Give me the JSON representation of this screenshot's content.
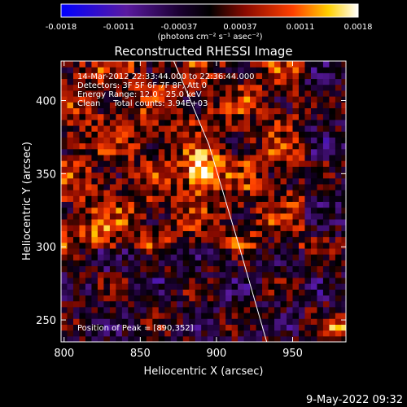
{
  "chart_data": {
    "type": "heatmap",
    "title": "Reconstructed RHESSI Image",
    "xlabel": "Heliocentric X (arcsec)",
    "ylabel": "Heliocentric Y (arcsec)",
    "xlim": [
      798,
      985
    ],
    "ylim": [
      235,
      427
    ],
    "xticks": [
      800,
      850,
      900,
      950
    ],
    "yticks": [
      250,
      300,
      350,
      400
    ],
    "colorbar": {
      "min": -0.0018,
      "max": 0.0018,
      "tick_labels": [
        "-0.0018",
        "-0.0011",
        "-0.00037",
        "0.00037",
        "0.0011",
        "0.0018"
      ],
      "unit_label": "(photons cm⁻² s⁻¹ asec⁻²)",
      "colors": [
        "#0000ff",
        "#5a1aa0",
        "#1a0030",
        "#000000",
        "#8a0a00",
        "#ff4000",
        "#ffd000",
        "#ffffff"
      ]
    },
    "annotations": [
      "14-Mar-2012 22:33:44.000 to 22:36:44.000",
      "Detectors: 3F 5F 6F 7F 8F, Att 0",
      "Energy Range: 12.0 - 25.0 keV",
      "Clean     Total counts: 3.94E+03"
    ],
    "peak_label": "Position of Peak = [890,352]",
    "peak": [
      890,
      352
    ],
    "sources": [
      {
        "x": 890,
        "y": 352,
        "amp": 0.0018,
        "sigma": 8
      },
      {
        "x": 980,
        "y": 243,
        "amp": 0.0014,
        "sigma": 5
      },
      {
        "x": 825,
        "y": 310,
        "amp": 0.0006,
        "sigma": 9
      }
    ],
    "limb_points": [
      [
        872,
        427
      ],
      [
        895,
        370
      ],
      [
        915,
        300
      ],
      [
        933,
        235
      ]
    ],
    "footer_date": "9-May-2022 09:32"
  }
}
